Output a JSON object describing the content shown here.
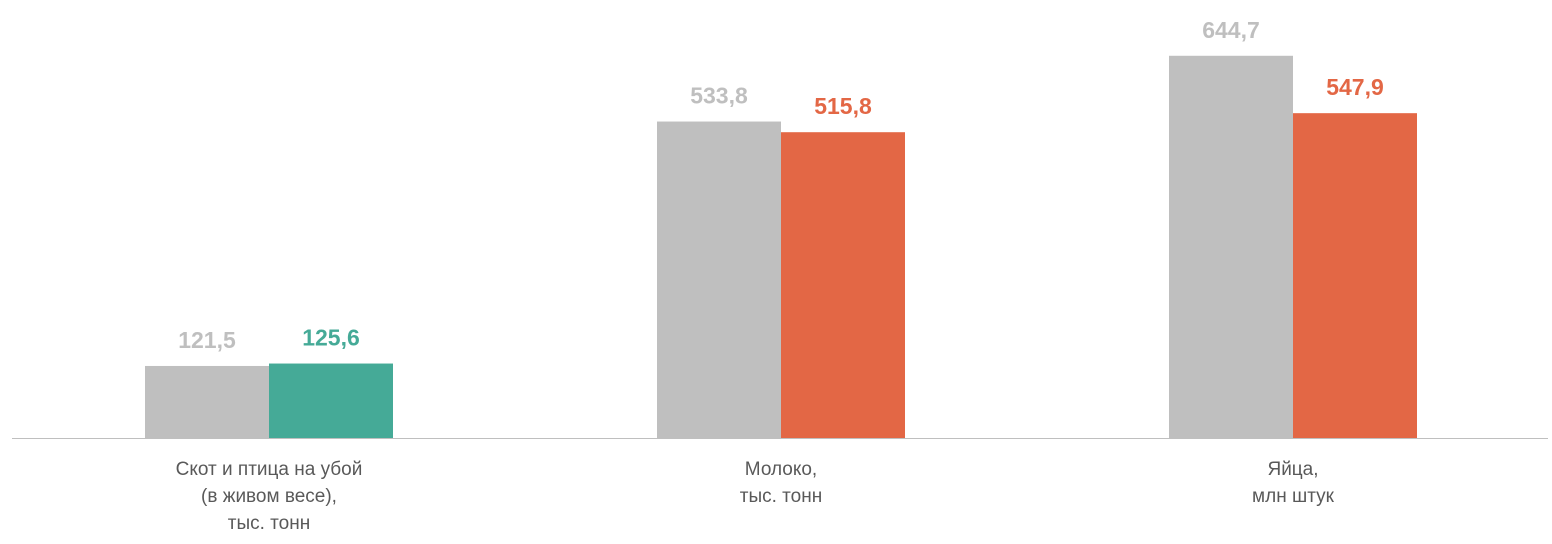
{
  "chart_data": {
    "type": "bar",
    "categories": [
      [
        "Скот и птица на убой",
        "(в живом весе),",
        "тыс. тонн"
      ],
      [
        "Молоко,",
        "тыс. тонн"
      ],
      [
        "Яйца,",
        "млн штук"
      ]
    ],
    "series": [
      {
        "color": "#bfbfbf",
        "values": [
          121.5,
          533.8,
          644.7
        ],
        "value_labels": [
          "121,5",
          "533,8",
          "644,7"
        ]
      },
      {
        "colors": [
          "#45aa97",
          "#e36745",
          "#e36745"
        ],
        "values": [
          125.6,
          515.8,
          547.9
        ],
        "value_labels": [
          "125,6",
          "515,8",
          "547,9"
        ]
      }
    ],
    "ylim": [
      0,
      700
    ]
  }
}
